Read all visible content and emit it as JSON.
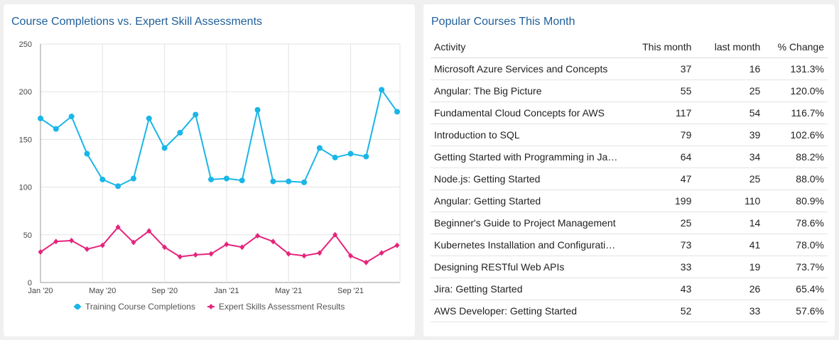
{
  "chart_panel": {
    "title": "Course Completions vs. Expert Skill Assessments"
  },
  "table_panel": {
    "title": "Popular Courses This Month",
    "columns": [
      "Activity",
      "This month",
      "last month",
      "% Change"
    ],
    "rows": [
      {
        "activity": "Microsoft Azure Services and Concepts",
        "this_month": "37",
        "last_month": "16",
        "change": "131.3%"
      },
      {
        "activity": "Angular: The Big Picture",
        "this_month": "55",
        "last_month": "25",
        "change": "120.0%"
      },
      {
        "activity": "Fundamental Cloud Concepts for AWS",
        "this_month": "117",
        "last_month": "54",
        "change": "116.7%"
      },
      {
        "activity": "Introduction to SQL",
        "this_month": "79",
        "last_month": "39",
        "change": "102.6%"
      },
      {
        "activity": "Getting Started with Programming in Ja…",
        "this_month": "64",
        "last_month": "34",
        "change": "88.2%"
      },
      {
        "activity": "Node.js: Getting Started",
        "this_month": "47",
        "last_month": "25",
        "change": "88.0%"
      },
      {
        "activity": "Angular: Getting Started",
        "this_month": "199",
        "last_month": "110",
        "change": "80.9%"
      },
      {
        "activity": "Beginner's Guide to Project Management",
        "this_month": "25",
        "last_month": "14",
        "change": "78.6%"
      },
      {
        "activity": "Kubernetes Installation and Configurati…",
        "this_month": "73",
        "last_month": "41",
        "change": "78.0%"
      },
      {
        "activity": "Designing RESTful Web APIs",
        "this_month": "33",
        "last_month": "19",
        "change": "73.7%"
      },
      {
        "activity": "Jira: Getting Started",
        "this_month": "43",
        "last_month": "26",
        "change": "65.4%"
      },
      {
        "activity": "AWS Developer: Getting Started",
        "this_month": "52",
        "last_month": "33",
        "change": "57.6%"
      }
    ]
  },
  "chart_data": {
    "type": "line",
    "title": "Course Completions vs. Expert Skill Assessments",
    "xlabel": "",
    "ylabel": "",
    "ylim": [
      0,
      250
    ],
    "yticks": [
      0,
      50,
      100,
      150,
      200,
      250
    ],
    "x": [
      "Jan '20",
      "Feb '20",
      "Mar '20",
      "Apr '20",
      "May '20",
      "Jun '20",
      "Jul '20",
      "Aug '20",
      "Sep '20",
      "Oct '20",
      "Nov '20",
      "Dec '20",
      "Jan '21",
      "Feb '21",
      "Mar '21",
      "Apr '21",
      "May '21",
      "Jun '21",
      "Jul '21",
      "Aug '21",
      "Sep '21",
      "Oct '21",
      "Nov '21",
      "Dec '21"
    ],
    "xtick_labels": [
      "Jan '20",
      "May '20",
      "Sep '20",
      "Jan '21",
      "May '21",
      "Sep '21"
    ],
    "xtick_index": [
      0,
      4,
      8,
      12,
      16,
      20
    ],
    "grid": true,
    "legend_position": "bottom",
    "series": [
      {
        "name": "Training Course Completions",
        "color": "#1ab6e8",
        "marker": "circle",
        "values": [
          172,
          161,
          174,
          135,
          108,
          101,
          109,
          172,
          141,
          157,
          176,
          108,
          109,
          107,
          181,
          106,
          106,
          105,
          141,
          131,
          135,
          132,
          202,
          179
        ]
      },
      {
        "name": "Expert Skills Assessment Results",
        "color": "#e5247c",
        "marker": "diamond",
        "values": [
          32,
          43,
          44,
          35,
          39,
          58,
          42,
          54,
          37,
          27,
          29,
          30,
          40,
          37,
          49,
          43,
          30,
          28,
          31,
          50,
          28,
          21,
          31,
          39
        ]
      }
    ]
  }
}
